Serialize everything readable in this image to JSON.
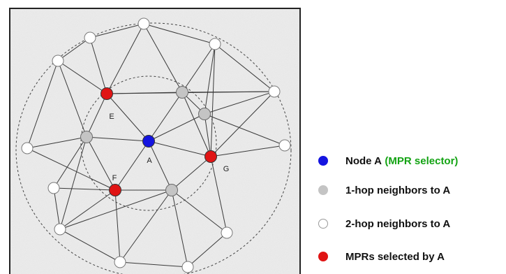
{
  "colors": {
    "background": "#ffffff",
    "panel": "#ececec",
    "frame": "#222222",
    "edge": "#3a3a3a",
    "node_a": "#1414e0",
    "one_hop": "#c4c4c4",
    "two_hop": "#ffffff",
    "mpr": "#e01414",
    "selector_text": "#13a313"
  },
  "diagram": {
    "node_labels": {
      "E": "E",
      "F": "F",
      "A": "A",
      "G": "G"
    }
  },
  "legend": {
    "items": [
      {
        "key": "node_a",
        "label": "Node A",
        "suffix": "(MPR selector)",
        "icon": "blue-dot-icon"
      },
      {
        "key": "one_hop",
        "label": "1-hop neighbors to A",
        "icon": "gray-dot-icon"
      },
      {
        "key": "two_hop",
        "label": "2-hop neighbors to A",
        "icon": "white-dot-icon"
      },
      {
        "key": "mpr",
        "label": "MPRs selected by A",
        "icon": "red-dot-icon"
      }
    ]
  }
}
